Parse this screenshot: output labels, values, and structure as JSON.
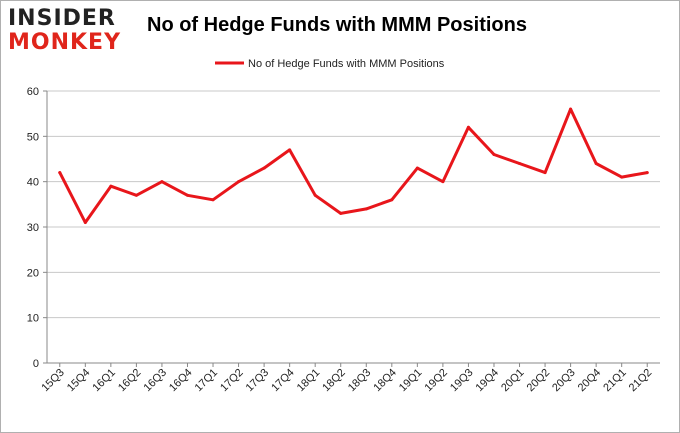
{
  "logo": {
    "line1": "INSIDER",
    "line2": "MONKEY"
  },
  "colors": {
    "series": "#e8161b",
    "grid": "#c8c8c8",
    "axis": "#888888"
  },
  "chart_data": {
    "type": "line",
    "title": "No of Hedge Funds with MMM Positions",
    "xlabel": "",
    "ylabel": "",
    "ylim": [
      0,
      60
    ],
    "yticks": [
      0,
      10,
      20,
      30,
      40,
      50,
      60
    ],
    "grid": "horizontal",
    "legend_position": "top-center",
    "categories": [
      "15Q3",
      "15Q4",
      "16Q1",
      "16Q2",
      "16Q3",
      "16Q4",
      "17Q1",
      "17Q2",
      "17Q3",
      "17Q4",
      "18Q1",
      "18Q2",
      "18Q3",
      "18Q4",
      "19Q1",
      "19Q2",
      "19Q3",
      "19Q4",
      "20Q1",
      "20Q2",
      "20Q3",
      "20Q4",
      "21Q1",
      "21Q2"
    ],
    "series": [
      {
        "name": "No of Hedge Funds with MMM Positions",
        "values": [
          42,
          31,
          39,
          37,
          40,
          37,
          36,
          40,
          43,
          47,
          37,
          33,
          34,
          36,
          43,
          40,
          52,
          46,
          44,
          42,
          56,
          44,
          41,
          42
        ]
      }
    ]
  }
}
